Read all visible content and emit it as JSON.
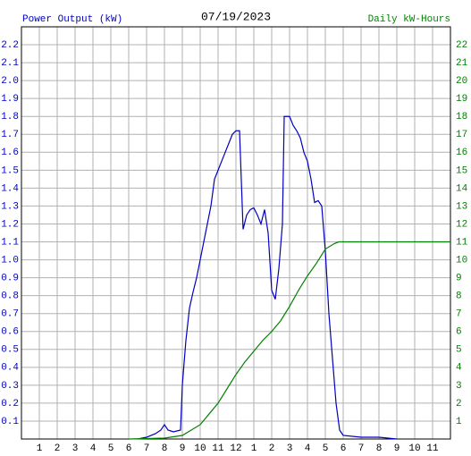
{
  "chart_data": {
    "type": "line",
    "title": "07/19/2023",
    "xlim": [
      0,
      24
    ],
    "xticks": [
      1,
      2,
      3,
      4,
      5,
      6,
      7,
      8,
      9,
      10,
      11,
      12,
      {
        "value": 13,
        "label": "1"
      },
      {
        "value": 14,
        "label": "2"
      },
      {
        "value": 15,
        "label": "3"
      },
      {
        "value": 16,
        "label": "4"
      },
      {
        "value": 17,
        "label": "5"
      },
      {
        "value": 18,
        "label": "6"
      },
      {
        "value": 19,
        "label": "7"
      },
      {
        "value": 20,
        "label": "8"
      },
      {
        "value": 21,
        "label": "9"
      },
      {
        "value": 22,
        "label": "10"
      },
      {
        "value": 23,
        "label": "11"
      }
    ],
    "ylim": [
      0,
      2.3
    ],
    "yticks": [
      0.1,
      0.2,
      0.3,
      0.4,
      0.5,
      0.6,
      0.7,
      0.8,
      0.9,
      {
        "value": 1,
        "label": "1.0"
      },
      1.1,
      1.2,
      1.3,
      1.4,
      1.5,
      1.6,
      1.7,
      1.8,
      1.9,
      {
        "value": 2,
        "label": "2.0"
      },
      2.1,
      2.2
    ],
    "y2lim": [
      0,
      23
    ],
    "y2ticks": [
      1,
      2,
      3,
      4,
      5,
      6,
      7,
      8,
      9,
      10,
      11,
      12,
      13,
      14,
      15,
      16,
      17,
      18,
      19,
      20,
      21,
      22
    ],
    "grid": true,
    "series": [
      {
        "name": "Power Output (kW)",
        "color": "#0000c0",
        "axis": "y",
        "x": [
          6.5,
          7,
          7.5,
          7.8,
          8,
          8.2,
          8.5,
          8.9,
          9,
          9.2,
          9.4,
          9.6,
          9.8,
          10,
          10.2,
          10.4,
          10.6,
          10.8,
          11,
          11.2,
          11.4,
          11.6,
          11.8,
          12,
          12.2,
          12.4,
          12.6,
          12.8,
          13,
          13.2,
          13.4,
          13.6,
          13.8,
          14,
          14.2,
          14.4,
          14.6,
          14.7,
          15,
          15.2,
          15.4,
          15.6,
          15.8,
          16,
          16.2,
          16.4,
          16.6,
          16.8,
          17,
          17.2,
          17.4,
          17.6,
          17.8,
          18,
          19,
          20,
          21
        ],
        "values": [
          0,
          0.01,
          0.03,
          0.05,
          0.08,
          0.05,
          0.04,
          0.05,
          0.3,
          0.55,
          0.73,
          0.82,
          0.9,
          1.0,
          1.1,
          1.2,
          1.3,
          1.45,
          1.5,
          1.55,
          1.6,
          1.65,
          1.7,
          1.72,
          1.72,
          1.17,
          1.25,
          1.28,
          1.29,
          1.25,
          1.2,
          1.28,
          1.15,
          0.83,
          0.78,
          0.95,
          1.2,
          1.8,
          1.8,
          1.75,
          1.72,
          1.68,
          1.6,
          1.55,
          1.45,
          1.32,
          1.33,
          1.3,
          1.05,
          0.7,
          0.45,
          0.2,
          0.05,
          0.02,
          0.01,
          0.01,
          0
        ]
      },
      {
        "name": "Daily kW-Hours",
        "color": "#008000",
        "axis": "y2",
        "x": [
          6,
          8,
          9,
          9.5,
          10,
          10.5,
          11,
          11.5,
          12,
          12.5,
          13,
          13.5,
          14,
          14.5,
          15,
          15.5,
          16,
          16.5,
          17,
          17.5,
          17.75,
          24
        ],
        "values": [
          0,
          0.05,
          0.2,
          0.5,
          0.8,
          1.4,
          2.0,
          2.8,
          3.6,
          4.3,
          4.9,
          5.5,
          6.0,
          6.6,
          7.4,
          8.3,
          9.1,
          9.8,
          10.6,
          10.9,
          11.0,
          11.0
        ]
      }
    ]
  }
}
